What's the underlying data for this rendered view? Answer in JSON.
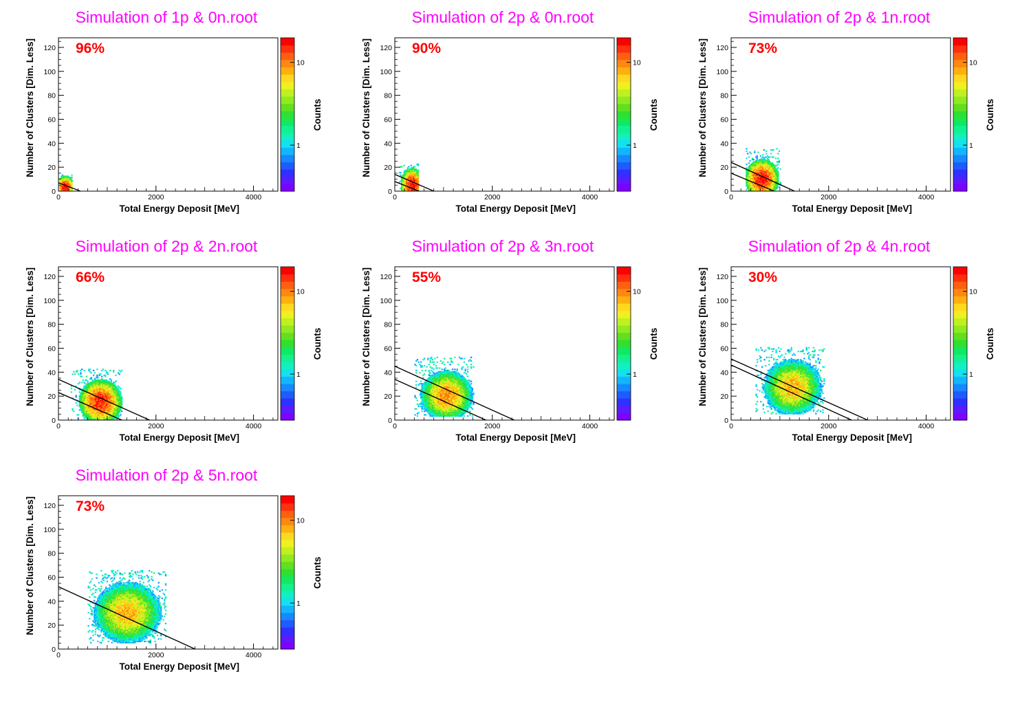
{
  "colorbar_label": "Counts",
  "colorbar_ticks": [
    "1",
    "10"
  ],
  "colorbar_palette": [
    "#7f00ff",
    "#5b1bff",
    "#3030ff",
    "#1f5bff",
    "#1589ff",
    "#13b5ff",
    "#13e0f0",
    "#12f0c0",
    "#12f090",
    "#12e860",
    "#30e030",
    "#60e020",
    "#90ea20",
    "#c0f020",
    "#f0f020",
    "#ffd820",
    "#ffb010",
    "#ff8810",
    "#ff6010",
    "#ff3010",
    "#ff0000"
  ],
  "chart_data": [
    {
      "type": "heatmap",
      "title": "Simulation of 1p & 0n.root",
      "annotation": "96%",
      "xlabel": "Total Energy Deposit [MeV]",
      "ylabel": "Number of Clusters [Dim. Less]",
      "xlim": [
        0,
        4500
      ],
      "ylim": [
        0,
        128
      ],
      "xticks": [
        0,
        2000,
        4000
      ],
      "yticks": [
        0,
        20,
        40,
        60,
        80,
        100,
        120
      ],
      "zscale": "log",
      "zlabel": "Counts",
      "blob": {
        "center": [
          130,
          3
        ],
        "spread": [
          80,
          4
        ],
        "x_range": [
          20,
          260
        ],
        "y_range": [
          0,
          13
        ],
        "peak_counts": 20
      },
      "cut_lines": [
        [
          [
            0,
            7
          ],
          [
            450,
            0
          ]
        ]
      ]
    },
    {
      "type": "heatmap",
      "title": "Simulation of 2p & 0n.root",
      "annotation": "90%",
      "xlabel": "Total Energy Deposit [MeV]",
      "ylabel": "Number of Clusters [Dim. Less]",
      "xlim": [
        0,
        4500
      ],
      "ylim": [
        0,
        128
      ],
      "xticks": [
        0,
        2000,
        4000
      ],
      "yticks": [
        0,
        20,
        40,
        60,
        80,
        100,
        120
      ],
      "zscale": "log",
      "zlabel": "Counts",
      "blob": {
        "center": [
          340,
          5
        ],
        "spread": [
          100,
          6
        ],
        "x_range": [
          80,
          480
        ],
        "y_range": [
          0,
          22
        ],
        "peak_counts": 20
      },
      "cut_lines": [
        [
          [
            0,
            14
          ],
          [
            800,
            0
          ]
        ],
        [
          [
            0,
            8
          ],
          [
            500,
            0
          ]
        ]
      ]
    },
    {
      "type": "heatmap",
      "title": "Simulation of 2p & 1n.root",
      "annotation": "73%",
      "xlabel": "Total Energy Deposit [MeV]",
      "ylabel": "Number of Clusters [Dim. Less]",
      "xlim": [
        0,
        4500
      ],
      "ylim": [
        0,
        128
      ],
      "xticks": [
        0,
        2000,
        4000
      ],
      "yticks": [
        0,
        20,
        40,
        60,
        80,
        100,
        120
      ],
      "zscale": "log",
      "zlabel": "Counts",
      "blob": {
        "center": [
          620,
          10
        ],
        "spread": [
          150,
          7
        ],
        "x_range": [
          300,
          1000
        ],
        "y_range": [
          0,
          35
        ],
        "peak_counts": 20
      },
      "cut_lines": [
        [
          [
            0,
            24
          ],
          [
            1300,
            0
          ]
        ],
        [
          [
            0,
            15
          ],
          [
            880,
            0
          ]
        ]
      ]
    },
    {
      "type": "heatmap",
      "title": "Simulation of 2p & 2n.root",
      "annotation": "66%",
      "xlabel": "Total Energy Deposit [MeV]",
      "ylabel": "Number of Clusters [Dim. Less]",
      "xlim": [
        0,
        4500
      ],
      "ylim": [
        0,
        128
      ],
      "xticks": [
        0,
        2000,
        4000
      ],
      "yticks": [
        0,
        20,
        40,
        60,
        80,
        100,
        120
      ],
      "zscale": "log",
      "zlabel": "Counts",
      "blob": {
        "center": [
          850,
          15
        ],
        "spread": [
          190,
          8
        ],
        "x_range": [
          250,
          1300
        ],
        "y_range": [
          0,
          42
        ],
        "peak_counts": 18
      },
      "cut_lines": [
        [
          [
            0,
            34
          ],
          [
            1870,
            0
          ]
        ],
        [
          [
            0,
            23
          ],
          [
            1300,
            0
          ]
        ]
      ]
    },
    {
      "type": "heatmap",
      "title": "Simulation of 2p & 3n.root",
      "annotation": "55%",
      "xlabel": "Total Energy Deposit [MeV]",
      "ylabel": "Number of Clusters [Dim. Less]",
      "xlim": [
        0,
        4500
      ],
      "ylim": [
        0,
        128
      ],
      "xticks": [
        0,
        2000,
        4000
      ],
      "yticks": [
        0,
        20,
        40,
        60,
        80,
        100,
        120
      ],
      "zscale": "log",
      "zlabel": "Counts",
      "blob": {
        "center": [
          1050,
          20
        ],
        "spread": [
          230,
          9
        ],
        "x_range": [
          400,
          1600
        ],
        "y_range": [
          3,
          52
        ],
        "peak_counts": 10
      },
      "cut_lines": [
        [
          [
            0,
            45
          ],
          [
            2450,
            0
          ]
        ],
        [
          [
            0,
            34
          ],
          [
            1870,
            0
          ]
        ]
      ]
    },
    {
      "type": "heatmap",
      "title": "Simulation of 2p & 4n.root",
      "annotation": "30%",
      "xlabel": "Total Energy Deposit [MeV]",
      "ylabel": "Number of Clusters [Dim. Less]",
      "xlim": [
        0,
        4500
      ],
      "ylim": [
        0,
        128
      ],
      "xticks": [
        0,
        2000,
        4000
      ],
      "yticks": [
        0,
        20,
        40,
        60,
        80,
        100,
        120
      ],
      "zscale": "log",
      "zlabel": "Counts",
      "blob": {
        "center": [
          1250,
          27
        ],
        "spread": [
          260,
          10
        ],
        "x_range": [
          500,
          1900
        ],
        "y_range": [
          5,
          60
        ],
        "peak_counts": 8
      },
      "cut_lines": [
        [
          [
            0,
            51
          ],
          [
            2800,
            0
          ]
        ],
        [
          [
            0,
            46
          ],
          [
            2470,
            0
          ]
        ]
      ]
    },
    {
      "type": "heatmap",
      "title": "Simulation of 2p & 5n.root",
      "annotation": "73%",
      "xlabel": "Total Energy Deposit [MeV]",
      "ylabel": "Number of Clusters [Dim. Less]",
      "xlim": [
        0,
        4500
      ],
      "ylim": [
        0,
        128
      ],
      "xticks": [
        0,
        2000,
        4000
      ],
      "yticks": [
        0,
        20,
        40,
        60,
        80,
        100,
        120
      ],
      "zscale": "log",
      "zlabel": "Counts",
      "blob": {
        "center": [
          1400,
          30
        ],
        "spread": [
          300,
          11
        ],
        "x_range": [
          600,
          2200
        ],
        "y_range": [
          5,
          65
        ],
        "peak_counts": 8
      },
      "cut_lines": [
        [
          [
            0,
            52
          ],
          [
            2800,
            0
          ]
        ]
      ]
    }
  ]
}
